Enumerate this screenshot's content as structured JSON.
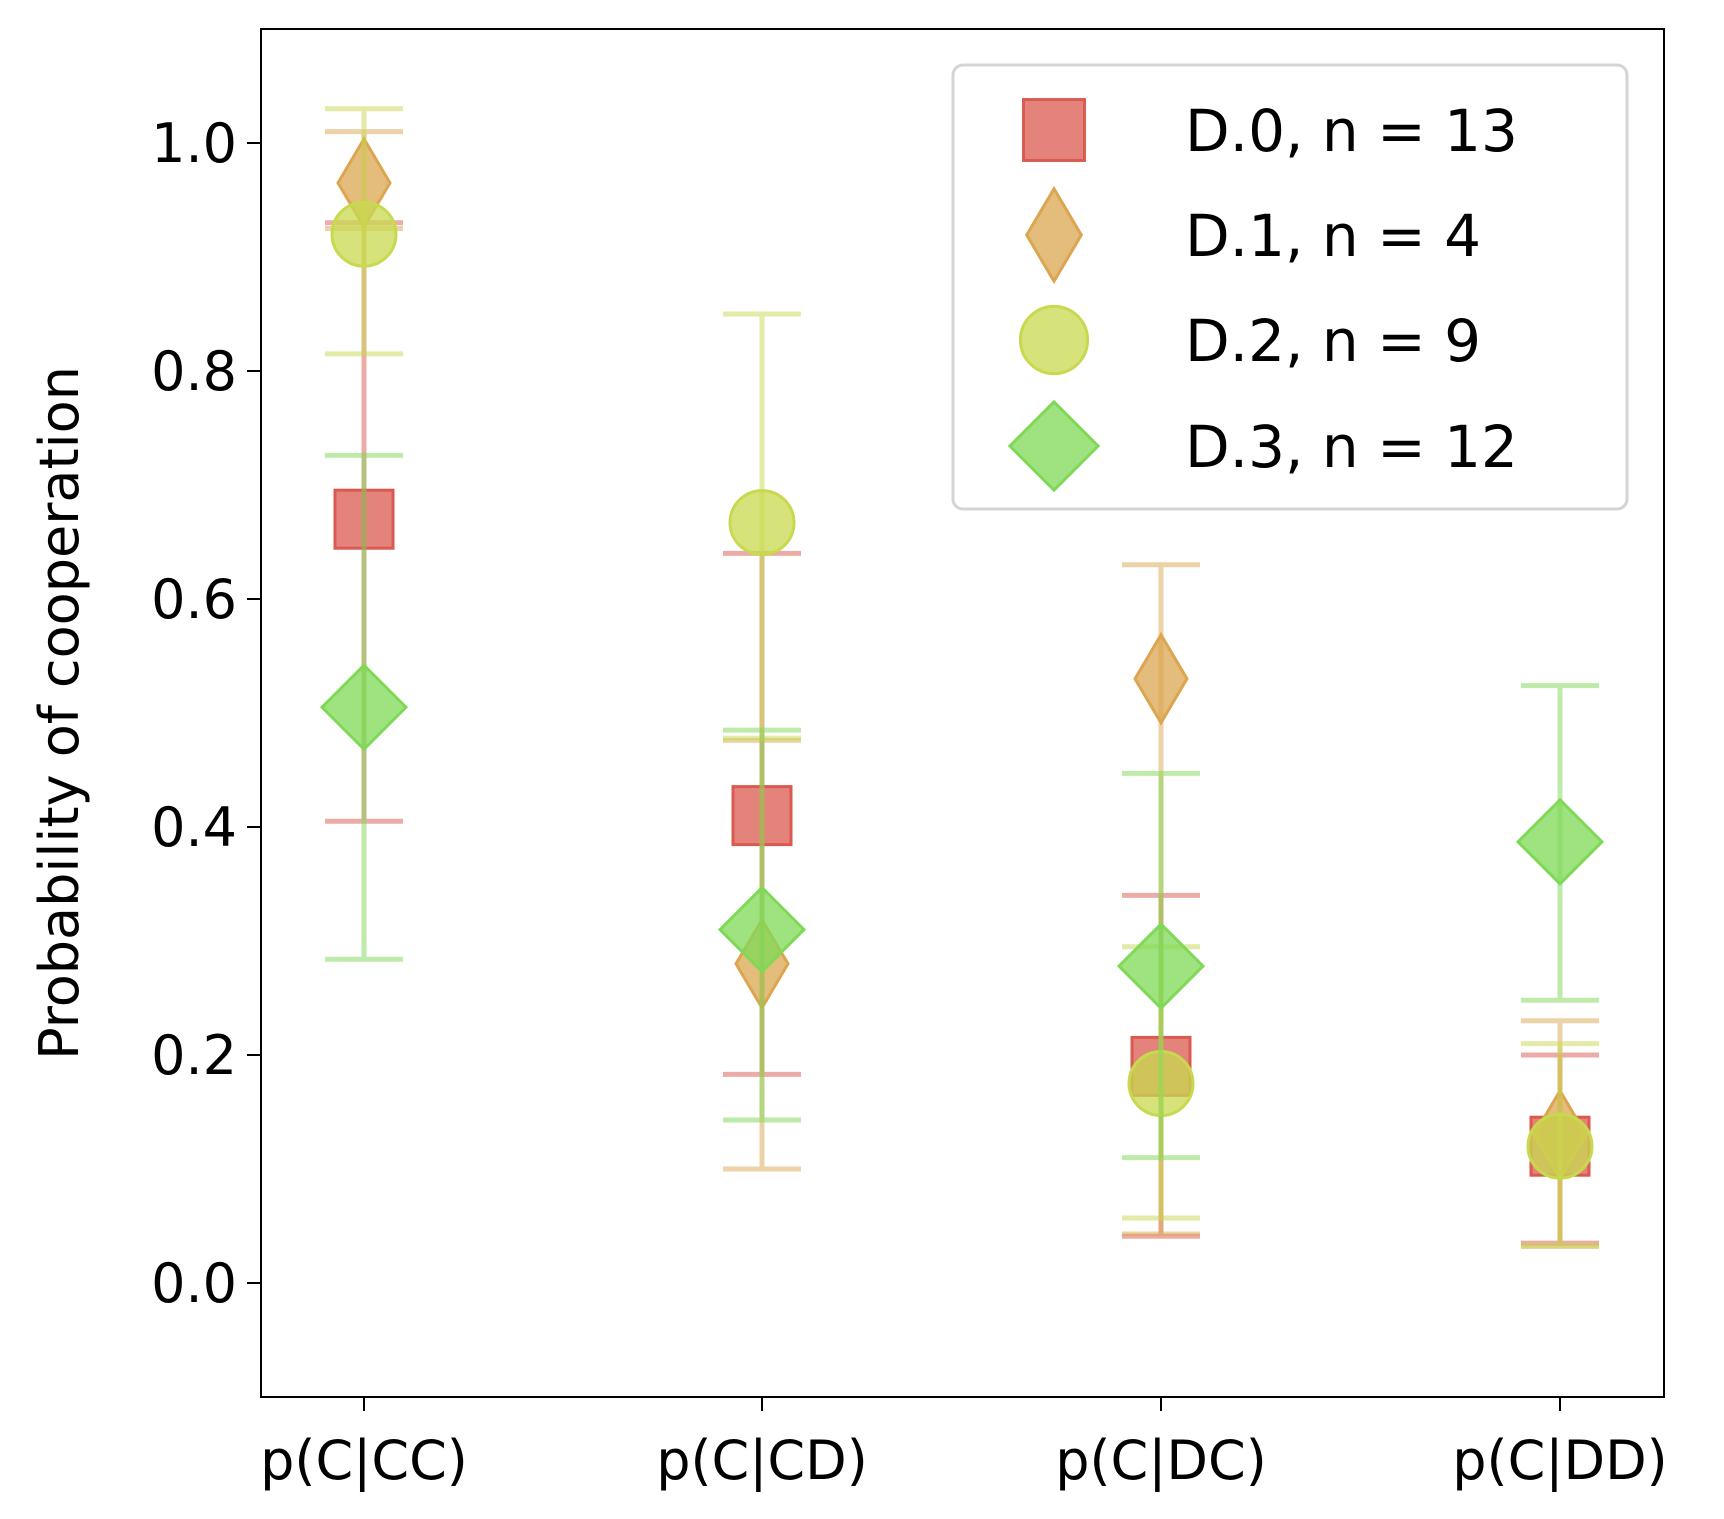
{
  "chart_data": {
    "type": "scatter",
    "ylabel": "Probability of cooperation",
    "xlabel": "",
    "categories": [
      "p(C|CC)",
      "p(C|CD)",
      "p(C|DC)",
      "p(C|DD)"
    ],
    "ylim": [
      -0.1,
      1.1
    ],
    "yticks": [
      0.0,
      0.2,
      0.4,
      0.6,
      0.8,
      1.0
    ],
    "ytick_labels": [
      "0.0",
      "0.2",
      "0.4",
      "0.6",
      "0.8",
      "1.0"
    ],
    "grid": false,
    "legend_position": "top-right",
    "series": [
      {
        "name": "D.0, n = 13",
        "marker": "square",
        "color": "#db5a50",
        "values": [
          0.67,
          0.41,
          0.19,
          0.12
        ],
        "err_low": [
          0.405,
          0.183,
          0.041,
          0.035
        ],
        "err_high": [
          0.93,
          0.64,
          0.34,
          0.2
        ]
      },
      {
        "name": "D.1, n = 4",
        "marker": "thin_diamond",
        "color": "#dba64f",
        "values": [
          0.965,
          0.28,
          0.53,
          0.13
        ],
        "err_low": [
          0.925,
          0.1,
          0.043,
          0.032
        ],
        "err_high": [
          1.01,
          0.476,
          0.63,
          0.23
        ]
      },
      {
        "name": "D.2, n = 9",
        "marker": "circle",
        "color": "#c8d94f",
        "values": [
          0.92,
          0.667,
          0.175,
          0.12
        ],
        "err_low": [
          0.815,
          0.478,
          0.057,
          0.033
        ],
        "err_high": [
          1.03,
          0.85,
          0.295,
          0.21
        ]
      },
      {
        "name": "D.3, n = 12",
        "marker": "diamond",
        "color": "#7fd957",
        "values": [
          0.505,
          0.31,
          0.278,
          0.387
        ],
        "err_low": [
          0.284,
          0.143,
          0.11,
          0.248
        ],
        "err_high": [
          0.726,
          0.485,
          0.447,
          0.524
        ]
      }
    ]
  }
}
